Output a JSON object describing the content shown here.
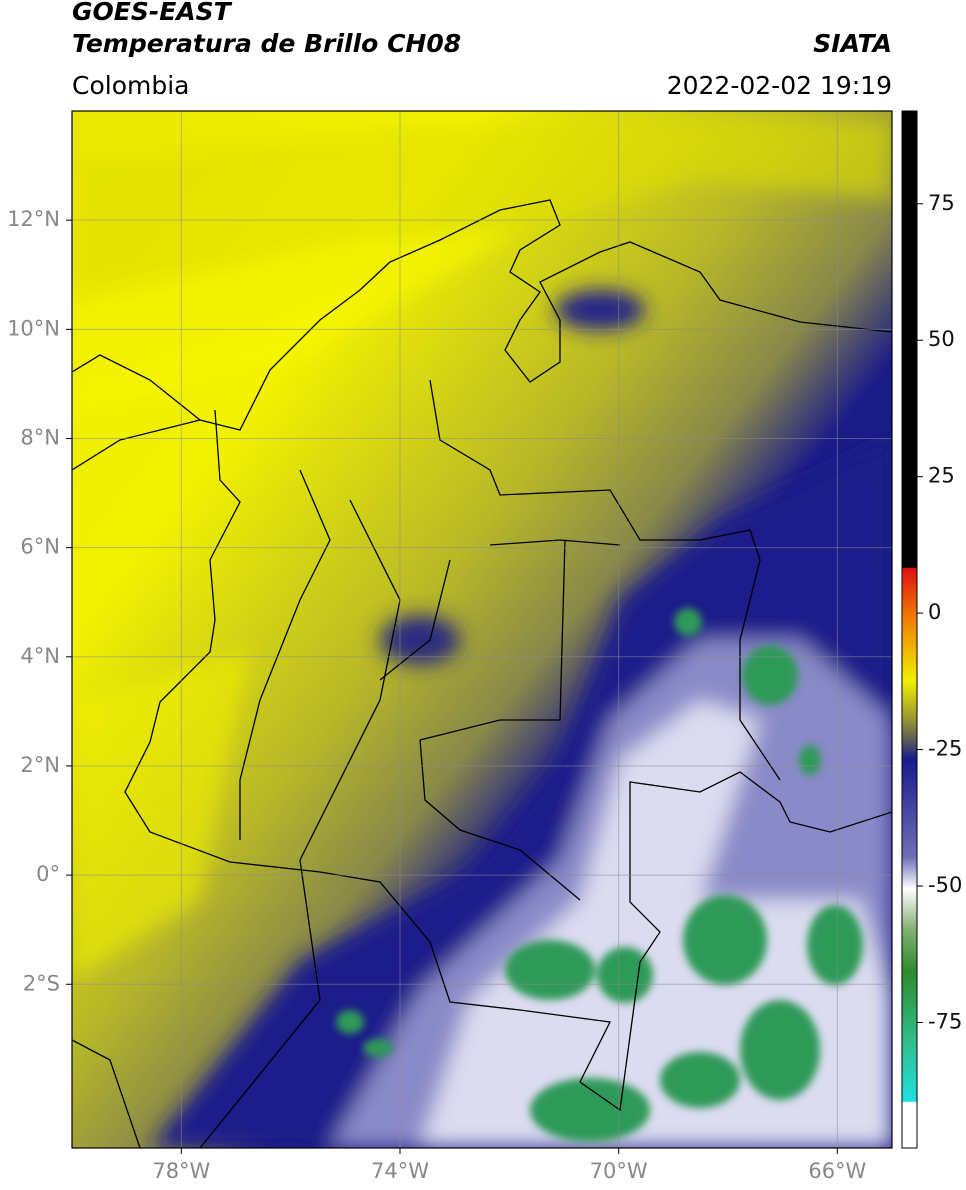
{
  "header": {
    "title_line1": "GOES-EAST",
    "title_line2": "Temperatura de Brillo CH08",
    "region": "Colombia",
    "source": "SIATA",
    "datetime": "2022-02-02 19:19"
  },
  "map": {
    "type": "map",
    "xlim": [
      -80,
      -65
    ],
    "ylim": [
      -5,
      14
    ],
    "grid": true,
    "xticks": [
      {
        "value": -78,
        "label": "78°W"
      },
      {
        "value": -74,
        "label": "74°W"
      },
      {
        "value": -70,
        "label": "70°W"
      },
      {
        "value": -66,
        "label": "66°W"
      }
    ],
    "yticks": [
      {
        "value": 12,
        "label": "12°N"
      },
      {
        "value": 10,
        "label": "10°N"
      },
      {
        "value": 8,
        "label": "8°N"
      },
      {
        "value": 6,
        "label": "6°N"
      },
      {
        "value": 4,
        "label": "4°N"
      },
      {
        "value": 2,
        "label": "2°N"
      },
      {
        "value": 0,
        "label": "0°"
      },
      {
        "value": -2,
        "label": "2°S"
      }
    ]
  },
  "colorbar": {
    "ylim": [
      -98,
      92
    ],
    "yticks": [
      75,
      50,
      25,
      0,
      -25,
      -50,
      -75
    ]
  }
}
